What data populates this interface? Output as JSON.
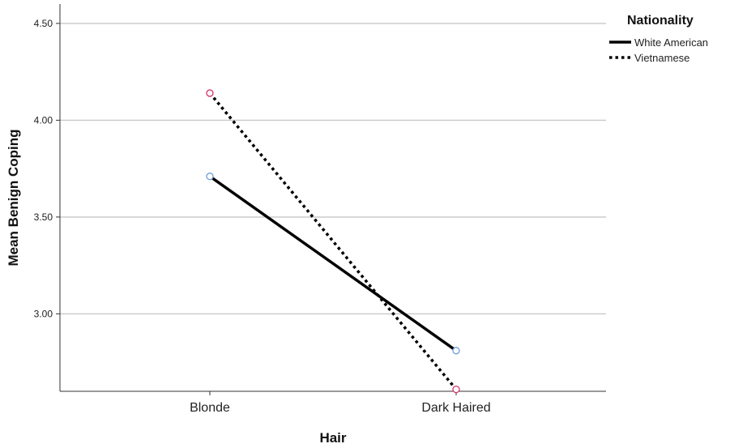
{
  "chart_data": {
    "type": "line",
    "xlabel": "Hair",
    "ylabel": "Mean Benign Coping",
    "categories": [
      "Blonde",
      "Dark Haired"
    ],
    "ylim": [
      2.6,
      4.6
    ],
    "yticks": [
      "3.00",
      "3.50",
      "4.00",
      "4.50"
    ],
    "legend_title": "Nationality",
    "legend_position": "top-right",
    "grid": true,
    "series": [
      {
        "name": "White American",
        "values": [
          3.71,
          2.81
        ],
        "style": "solid",
        "color": "#000000",
        "marker_color": "#6f9fd8"
      },
      {
        "name": "Vietnamese",
        "values": [
          4.14,
          2.61
        ],
        "style": "dotted",
        "color": "#000000",
        "marker_color": "#d6336c"
      }
    ]
  }
}
